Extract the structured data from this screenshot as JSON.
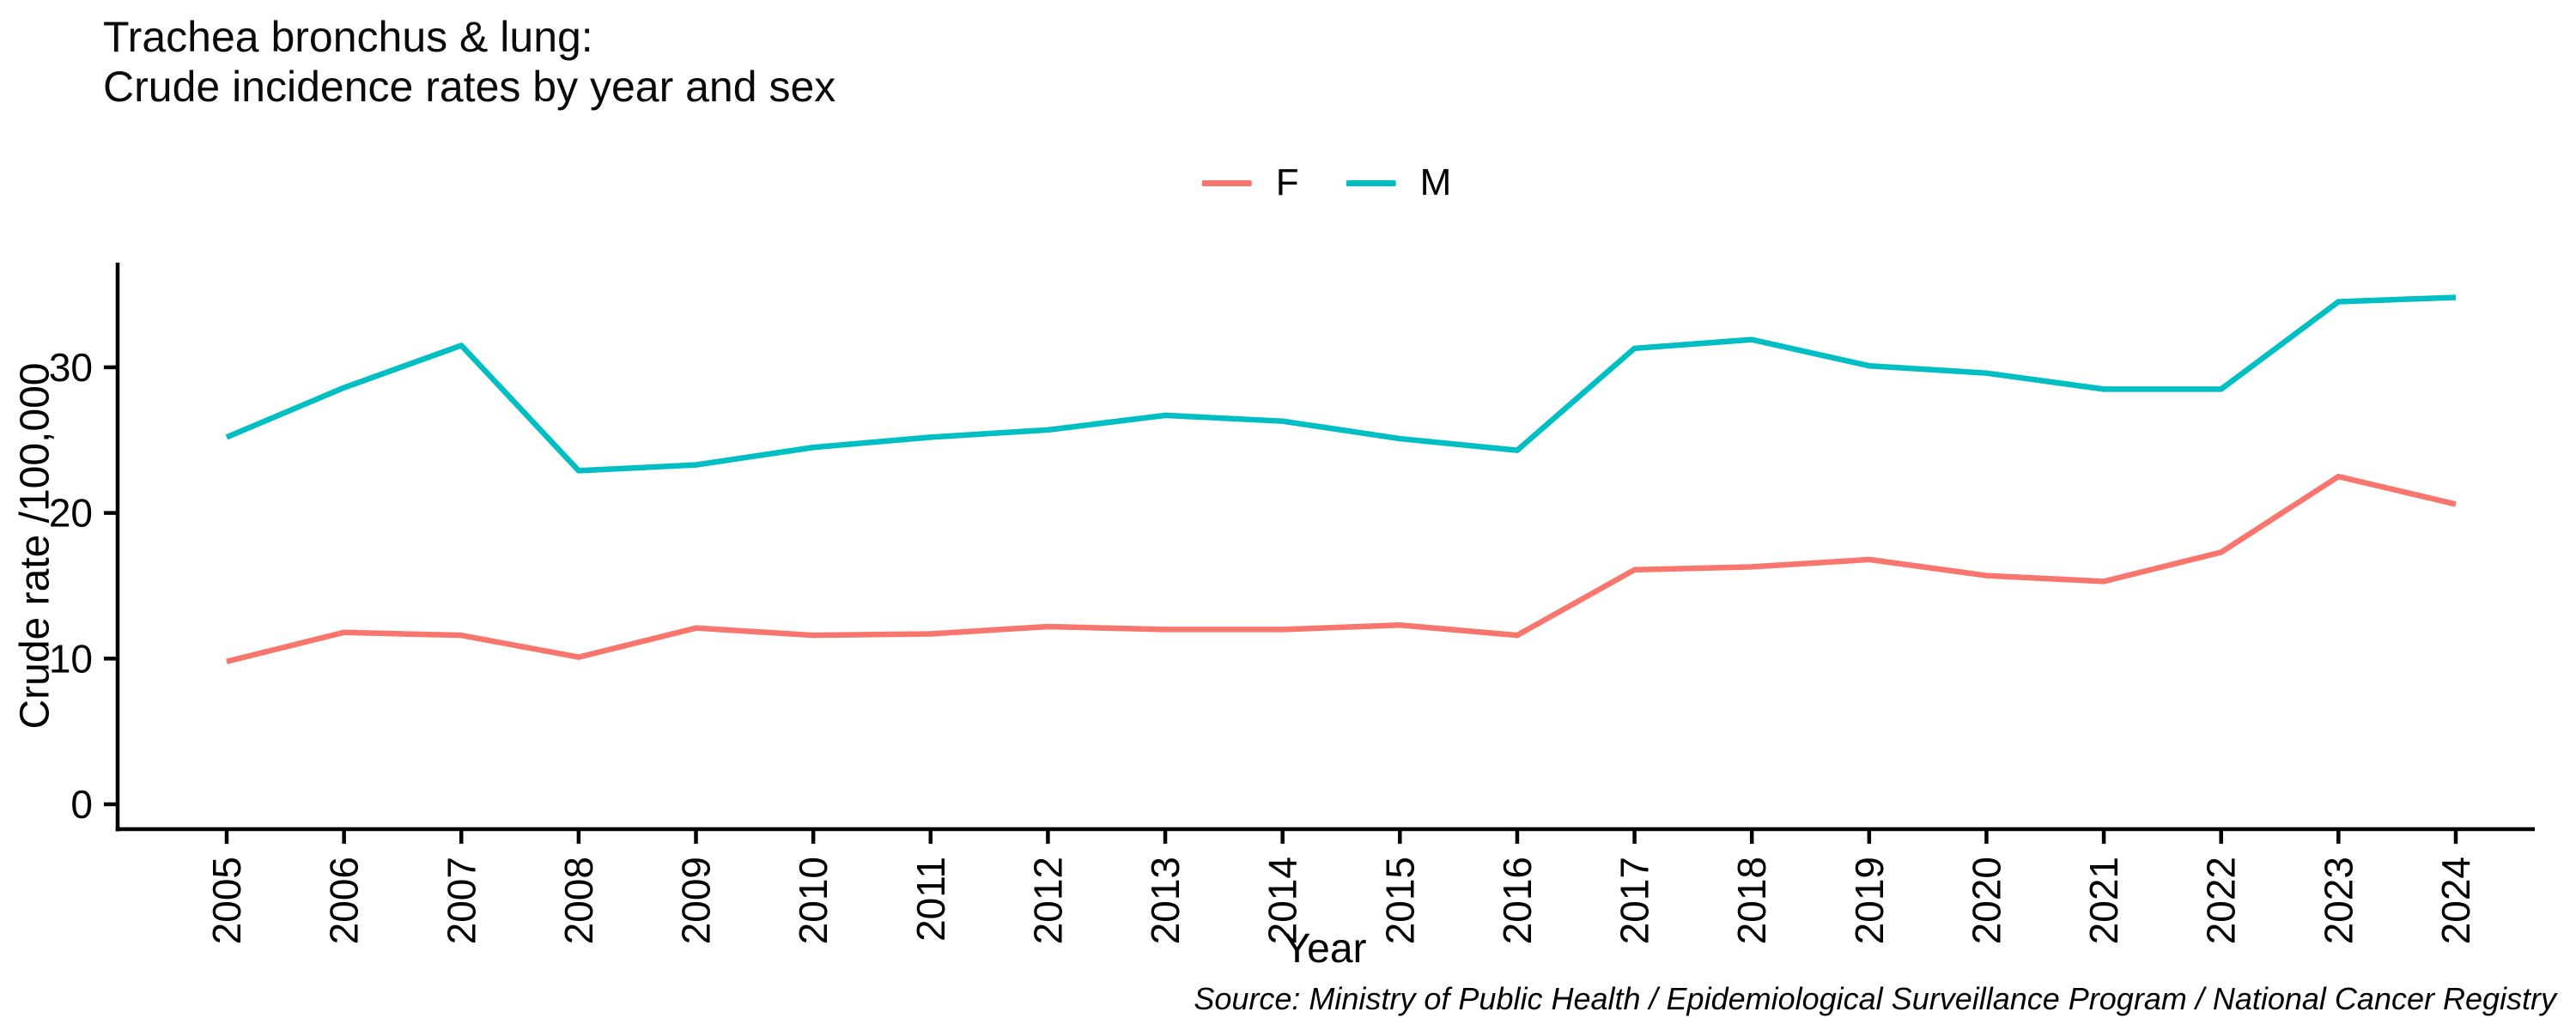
{
  "title": {
    "line1": "Trachea bronchus & lung:",
    "line2": "Crude incidence rates by year and sex"
  },
  "legend": [
    {
      "label": "F",
      "color": "#F8766D"
    },
    {
      "label": "M",
      "color": "#00BFC4"
    }
  ],
  "axes": {
    "x_title": "Year",
    "y_title": "Crude rate /100,000",
    "y_ticks": [
      0,
      10,
      20,
      30
    ]
  },
  "source": "Source: Ministry of Public Health / Epidemiological Surveillance Program / National Cancer Registry",
  "chart_data": {
    "type": "line",
    "title": "Trachea bronchus & lung: Crude incidence rates by year and sex",
    "categories": [
      "2005",
      "2006",
      "2007",
      "2008",
      "2009",
      "2010",
      "2011",
      "2012",
      "2013",
      "2014",
      "2015",
      "2016",
      "2017",
      "2018",
      "2019",
      "2020",
      "2021",
      "2022",
      "2023",
      "2024"
    ],
    "series": [
      {
        "name": "F",
        "color": "#F8766D",
        "values": [
          9.8,
          11.8,
          11.6,
          10.1,
          12.1,
          11.6,
          11.7,
          12.2,
          12.0,
          12.0,
          12.3,
          11.6,
          16.1,
          16.3,
          16.8,
          15.7,
          15.3,
          17.3,
          22.5,
          20.6
        ]
      },
      {
        "name": "M",
        "color": "#00BFC4",
        "values": [
          25.2,
          28.6,
          31.5,
          22.9,
          23.3,
          24.5,
          25.2,
          25.7,
          26.7,
          26.3,
          25.1,
          24.3,
          31.3,
          31.9,
          30.1,
          29.6,
          28.5,
          28.5,
          34.5,
          34.8
        ]
      }
    ],
    "xlabel": "Year",
    "ylabel": "Crude rate /100,000",
    "ylim": [
      0,
      37
    ],
    "grid": false,
    "legend_position": "top-center"
  }
}
